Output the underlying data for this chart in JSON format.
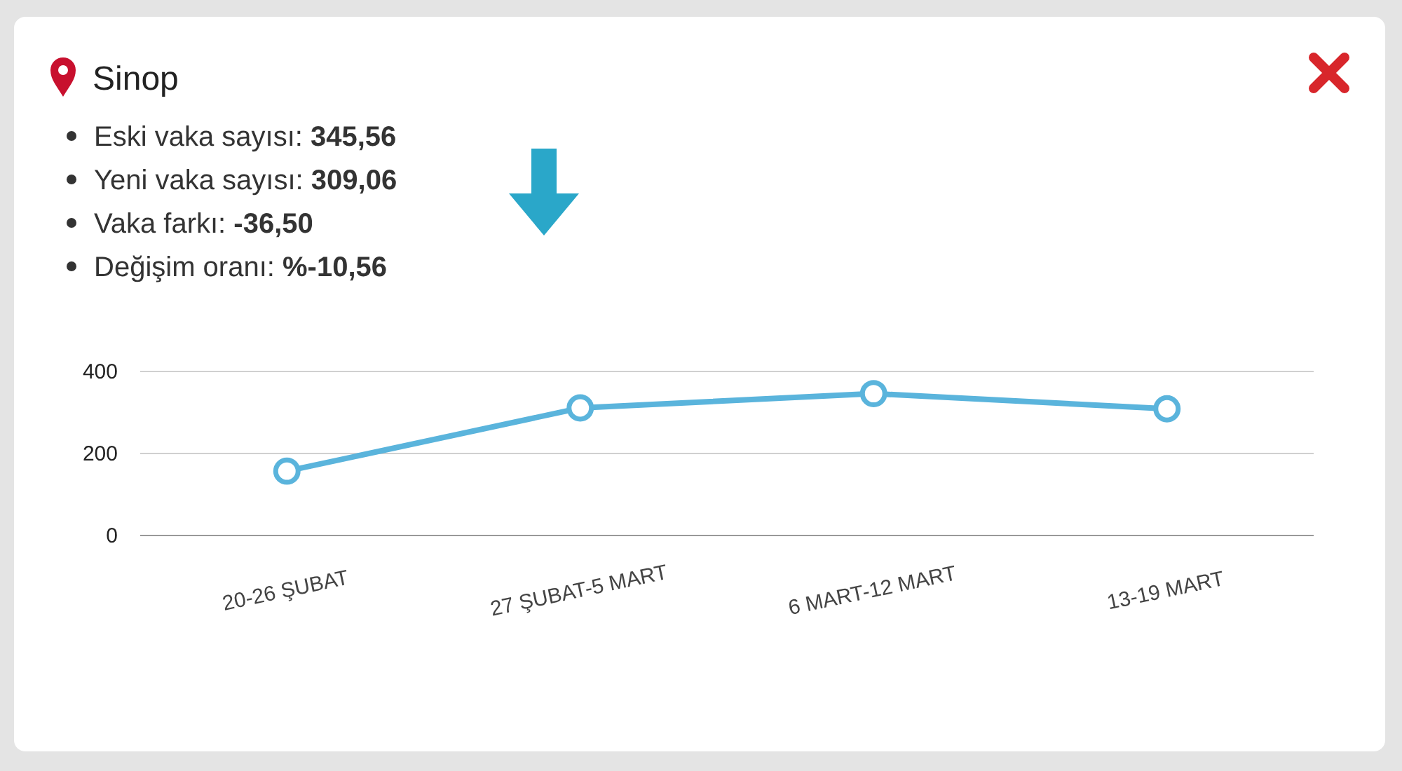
{
  "chart_data": {
    "type": "line",
    "title": "Sinop",
    "annotations": [
      "Eski vaka sayısı: 345,56",
      "Yeni vaka sayısı: 309,06",
      "Vaka farkı: -36,50",
      "Değişim oranı: %-10,56"
    ],
    "categories": [
      "20-26 ŞUBAT",
      "27 ŞUBAT-5 MART",
      "6 MART-12 MART",
      "13-19 MART"
    ],
    "series": [
      {
        "color": "#5ab4dc",
        "values": [
          157,
          311,
          346,
          309
        ]
      }
    ],
    "ylim": [
      0,
      400
    ],
    "yticks": [
      0,
      200,
      400
    ],
    "grid": "y",
    "marker": "circle",
    "line_style": "solid"
  }
}
